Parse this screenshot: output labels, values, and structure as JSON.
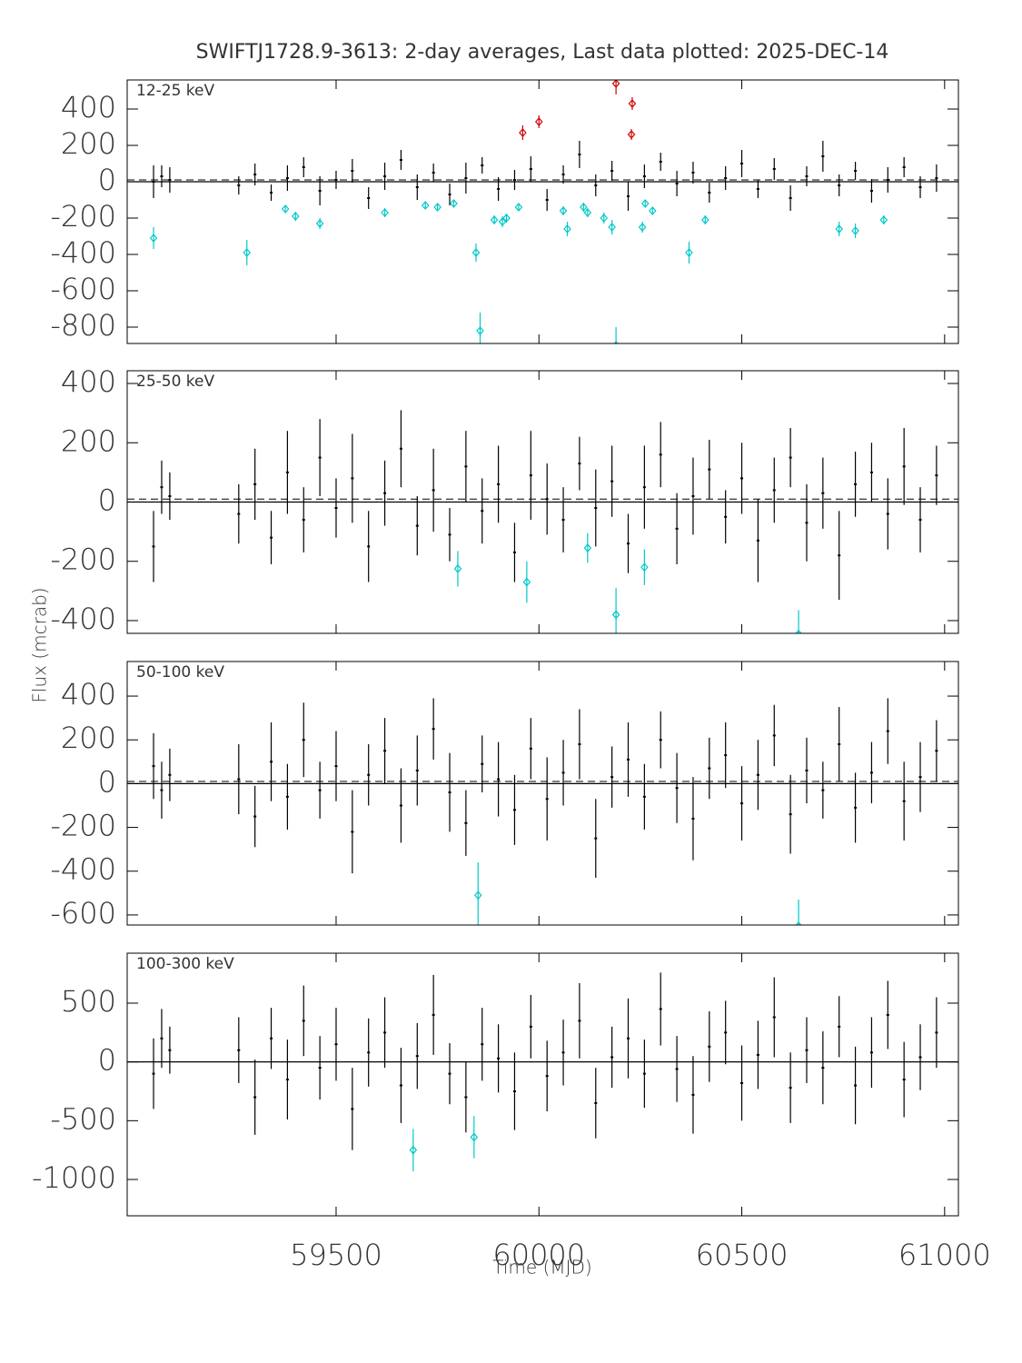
{
  "title": "SWIFTJ1728.9-3613:  2-day averages,  Last data plotted: 2025-DEC-14",
  "xlabel": "Time (MJD)",
  "ylabel": "Flux (mcrab)",
  "xlim": [
    58985,
    61034
  ],
  "xticks": [
    59500,
    60000,
    60500,
    61000
  ],
  "chart_data": [
    {
      "type": "errorbar",
      "label": "12-25 keV",
      "ylim": [
        -890,
        560
      ],
      "yticks": [
        -800,
        -600,
        -400,
        -200,
        0,
        200,
        400
      ],
      "mean": 10,
      "series": [
        {
          "color": "#000000",
          "marker": "dot",
          "x": [
            59050,
            59070,
            59090,
            59260,
            59300,
            59340,
            59380,
            59420,
            59460,
            59500,
            59540,
            59580,
            59620,
            59660,
            59700,
            59740,
            59780,
            59820,
            59860,
            59900,
            59940,
            59980,
            60020,
            60060,
            60100,
            60140,
            60180,
            60220,
            60260,
            60300,
            60340,
            60380,
            60420,
            60460,
            60500,
            60540,
            60580,
            60620,
            60660,
            60700,
            60740,
            60780,
            60820,
            60860,
            60900,
            60940,
            60980
          ],
          "values": [
            0,
            30,
            10,
            -20,
            40,
            -60,
            20,
            80,
            -50,
            10,
            60,
            -90,
            30,
            120,
            -30,
            50,
            -70,
            20,
            90,
            -40,
            10,
            70,
            -100,
            40,
            150,
            -20,
            60,
            -80,
            30,
            110,
            -10,
            50,
            -60,
            20,
            100,
            -40,
            70,
            -90,
            30,
            140,
            -20,
            60,
            -50,
            10,
            80,
            -30,
            20
          ],
          "errors": [
            90,
            60,
            70,
            50,
            60,
            45,
            70,
            55,
            80,
            50,
            65,
            60,
            75,
            55,
            70,
            50,
            60,
            85,
            45,
            65,
            55,
            70,
            60,
            50,
            75,
            60,
            55,
            80,
            65,
            50,
            70,
            60,
            55,
            65,
            75,
            50,
            60,
            70,
            55,
            85,
            60,
            50,
            65,
            70,
            55,
            60,
            75
          ]
        },
        {
          "color": "#00c8c8",
          "marker": "diamond",
          "x": [
            59050,
            59280,
            59375,
            59400,
            59460,
            59620,
            59720,
            59750,
            59790,
            59845,
            59855,
            59890,
            59910,
            59920,
            59950,
            60060,
            60070,
            60110,
            60120,
            60160,
            60180,
            60190,
            60255,
            60262,
            60280,
            60370,
            60410,
            60740,
            60780,
            60850
          ],
          "values": [
            -310,
            -390,
            -150,
            -190,
            -230,
            -170,
            -130,
            -140,
            -120,
            -390,
            -820,
            -210,
            -220,
            -200,
            -140,
            -160,
            -260,
            -140,
            -170,
            -200,
            -250,
            -900,
            -250,
            -120,
            -160,
            -390,
            -210,
            -260,
            -270,
            -210
          ],
          "errors": [
            60,
            70,
            20,
            25,
            30,
            25,
            20,
            20,
            20,
            50,
            100,
            25,
            30,
            25,
            20,
            25,
            40,
            25,
            25,
            30,
            40,
            100,
            30,
            20,
            20,
            60,
            25,
            40,
            40,
            25
          ]
        },
        {
          "color": "#d00000",
          "marker": "diamond",
          "x": [
            59960,
            60000,
            60190,
            60230,
            60228
          ],
          "values": [
            270,
            330,
            540,
            430,
            260
          ],
          "errors": [
            40,
            35,
            60,
            35,
            30
          ]
        }
      ]
    },
    {
      "type": "errorbar",
      "label": "25-50 keV",
      "ylim": [
        -443,
        443
      ],
      "yticks": [
        -400,
        -200,
        0,
        200,
        400
      ],
      "mean": 10,
      "series": [
        {
          "color": "#000000",
          "marker": "dot",
          "x": [
            59050,
            59070,
            59090,
            59260,
            59300,
            59340,
            59380,
            59420,
            59460,
            59500,
            59540,
            59580,
            59620,
            59660,
            59700,
            59740,
            59780,
            59820,
            59860,
            59900,
            59940,
            59980,
            60020,
            60060,
            60100,
            60140,
            60180,
            60220,
            60260,
            60300,
            60340,
            60380,
            60420,
            60460,
            60500,
            60540,
            60580,
            60620,
            60660,
            60700,
            60740,
            60780,
            60820,
            60860,
            60900,
            60940,
            60980
          ],
          "values": [
            -150,
            50,
            20,
            -40,
            60,
            -120,
            100,
            -60,
            150,
            -20,
            80,
            -150,
            30,
            180,
            -80,
            40,
            -110,
            120,
            -30,
            60,
            -170,
            90,
            10,
            -60,
            130,
            -20,
            70,
            -140,
            50,
            160,
            -90,
            20,
            110,
            -50,
            80,
            -130,
            40,
            150,
            -70,
            30,
            -180,
            60,
            100,
            -40,
            120,
            -60,
            90
          ],
          "errors": [
            120,
            90,
            80,
            100,
            120,
            90,
            140,
            110,
            130,
            100,
            150,
            120,
            110,
            130,
            100,
            140,
            90,
            120,
            110,
            130,
            100,
            150,
            120,
            110,
            90,
            130,
            120,
            100,
            140,
            110,
            120,
            130,
            100,
            90,
            120,
            140,
            110,
            100,
            130,
            120,
            150,
            110,
            100,
            120,
            130,
            110,
            100
          ]
        },
        {
          "color": "#00c8c8",
          "marker": "diamond",
          "x": [
            59800,
            59970,
            60120,
            60190,
            60260,
            60640
          ],
          "values": [
            -225,
            -270,
            -155,
            -380,
            -220,
            -445
          ],
          "errors": [
            60,
            70,
            50,
            90,
            60,
            80
          ]
        }
      ]
    },
    {
      "type": "errorbar",
      "label": "50-100 keV",
      "ylim": [
        -646,
        558
      ],
      "yticks": [
        -600,
        -400,
        -200,
        0,
        200,
        400
      ],
      "mean": 10,
      "series": [
        {
          "color": "#000000",
          "marker": "dot",
          "x": [
            59050,
            59070,
            59090,
            59260,
            59300,
            59340,
            59380,
            59420,
            59460,
            59500,
            59540,
            59580,
            59620,
            59660,
            59700,
            59740,
            59780,
            59820,
            59860,
            59900,
            59940,
            59980,
            60020,
            60060,
            60100,
            60140,
            60180,
            60220,
            60260,
            60300,
            60340,
            60380,
            60420,
            60460,
            60500,
            60540,
            60580,
            60620,
            60660,
            60700,
            60740,
            60780,
            60820,
            60860,
            60900,
            60940,
            60980
          ],
          "values": [
            80,
            -30,
            40,
            20,
            -150,
            100,
            -60,
            200,
            -30,
            80,
            -220,
            40,
            150,
            -100,
            60,
            250,
            -40,
            -180,
            90,
            20,
            -120,
            160,
            -70,
            50,
            180,
            -250,
            30,
            110,
            -60,
            200,
            -20,
            -160,
            70,
            130,
            -90,
            40,
            220,
            -140,
            60,
            -30,
            180,
            -110,
            50,
            240,
            -80,
            30,
            150
          ],
          "errors": [
            150,
            130,
            120,
            160,
            140,
            180,
            150,
            170,
            130,
            160,
            190,
            140,
            150,
            170,
            160,
            140,
            180,
            150,
            130,
            170,
            160,
            140,
            190,
            150,
            160,
            180,
            140,
            170,
            150,
            130,
            160,
            190,
            140,
            150,
            170,
            160,
            140,
            180,
            150,
            130,
            170,
            160,
            140,
            150,
            180,
            160,
            140
          ]
        },
        {
          "color": "#00c8c8",
          "marker": "diamond",
          "x": [
            59850,
            60640
          ],
          "values": [
            -510,
            -650
          ],
          "errors": [
            150,
            120
          ]
        }
      ]
    },
    {
      "type": "errorbar",
      "label": "100-300 keV",
      "ylim": [
        -1309,
        925
      ],
      "yticks": [
        -1000,
        -500,
        0,
        500
      ],
      "series": [
        {
          "color": "#000000",
          "marker": "dot",
          "x": [
            59050,
            59070,
            59090,
            59260,
            59300,
            59340,
            59380,
            59420,
            59460,
            59500,
            59540,
            59580,
            59620,
            59660,
            59700,
            59740,
            59780,
            59820,
            59860,
            59900,
            59940,
            59980,
            60020,
            60060,
            60100,
            60140,
            60180,
            60220,
            60260,
            60300,
            60340,
            60380,
            60420,
            60460,
            60500,
            60540,
            60580,
            60620,
            60660,
            60700,
            60740,
            60780,
            60820,
            60860,
            60900,
            60940,
            60980
          ],
          "values": [
            -100,
            200,
            100,
            100,
            -300,
            200,
            -150,
            350,
            -50,
            150,
            -400,
            80,
            250,
            -200,
            50,
            400,
            -100,
            -300,
            150,
            30,
            -250,
            300,
            -120,
            80,
            350,
            -350,
            40,
            200,
            -100,
            450,
            -60,
            -280,
            130,
            250,
            -180,
            60,
            380,
            -220,
            100,
            -50,
            300,
            -200,
            80,
            400,
            -150,
            40,
            250
          ],
          "errors": [
            300,
            250,
            200,
            280,
            320,
            260,
            340,
            300,
            270,
            310,
            350,
            290,
            300,
            320,
            280,
            340,
            260,
            300,
            310,
            290,
            330,
            270,
            300,
            280,
            320,
            300,
            260,
            340,
            290,
            310,
            280,
            330,
            300,
            270,
            320,
            290,
            340,
            300,
            280,
            310,
            260,
            330,
            300,
            290,
            320,
            280,
            300
          ]
        },
        {
          "color": "#00c8c8",
          "marker": "diamond",
          "x": [
            59690,
            59840
          ],
          "values": [
            -750,
            -640
          ],
          "errors": [
            180,
            180
          ]
        }
      ]
    }
  ]
}
